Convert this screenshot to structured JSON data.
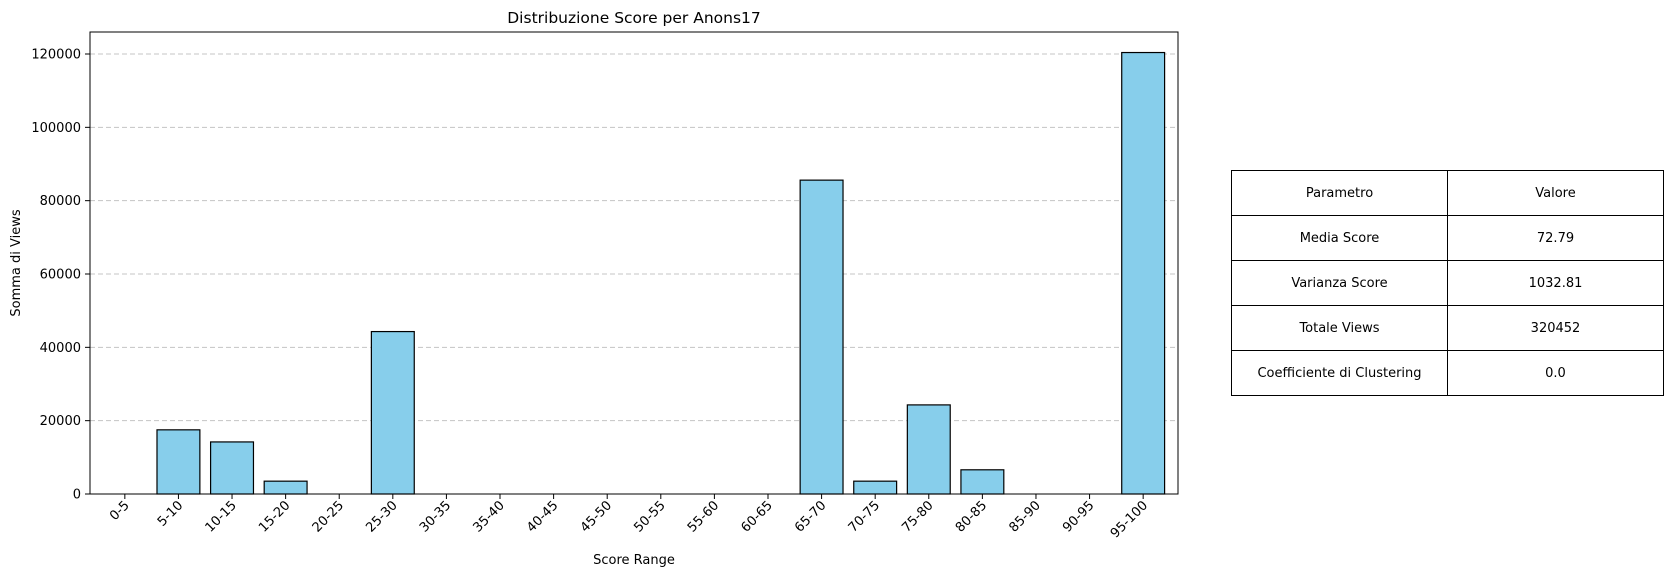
{
  "chart_data": {
    "type": "bar",
    "title": "Distribuzione Score per Anons17",
    "xlabel": "Score Range",
    "ylabel": "Somma di Views",
    "categories": [
      "0-5",
      "5-10",
      "10-15",
      "15-20",
      "20-25",
      "25-30",
      "30-35",
      "35-40",
      "40-45",
      "45-50",
      "50-55",
      "55-60",
      "60-65",
      "65-70",
      "70-75",
      "75-80",
      "80-85",
      "85-90",
      "90-95",
      "95-100"
    ],
    "values": [
      0,
      17500,
      14200,
      3500,
      0,
      44300,
      0,
      0,
      0,
      0,
      0,
      0,
      0,
      85600,
      3500,
      24300,
      6600,
      0,
      0,
      120400
    ],
    "ylim": [
      0,
      126000
    ],
    "yticks": [
      0,
      20000,
      40000,
      60000,
      80000,
      100000,
      120000
    ],
    "grid": "y-dashed",
    "bar_color": "#87ceeb",
    "edge_color": "#000000"
  },
  "table": {
    "header": [
      "Parametro",
      "Valore"
    ],
    "rows": [
      [
        "Media Score",
        "72.79"
      ],
      [
        "Varianza Score",
        "1032.81"
      ],
      [
        "Totale Views",
        "320452"
      ],
      [
        "Coefficiente di Clustering",
        "0.0"
      ]
    ]
  }
}
